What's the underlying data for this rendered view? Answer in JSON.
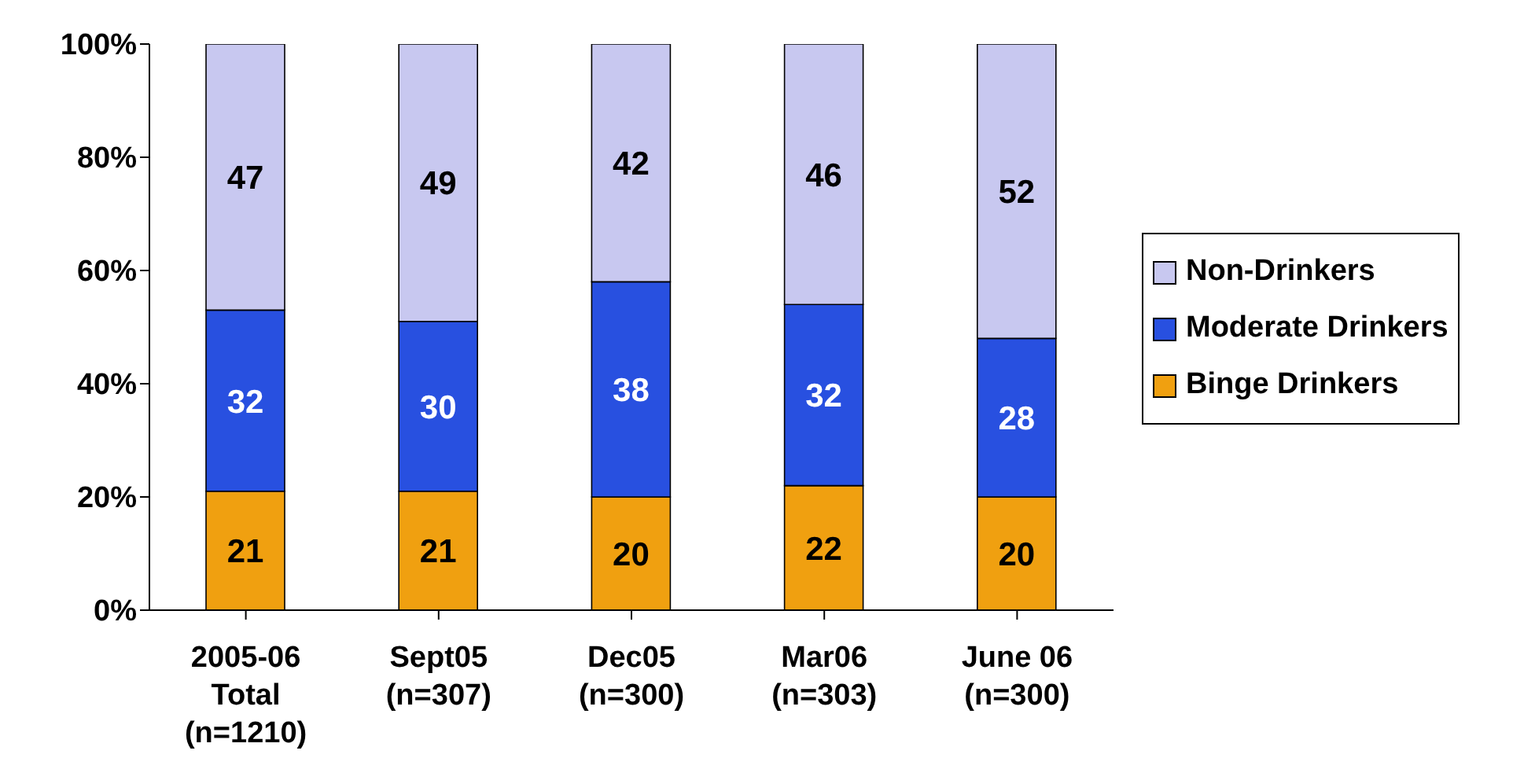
{
  "chart_data": {
    "type": "bar",
    "stacked": true,
    "categories": [
      "2005-06\nTotal\n(n=1210)",
      "Sept05\n(n=307)",
      "Dec05\n(n=300)",
      "Mar06\n(n=303)",
      "June 06\n(n=300)"
    ],
    "series": [
      {
        "name": "Binge Drinkers",
        "color": "#f0a010",
        "values": [
          21,
          21,
          20,
          22,
          20
        ]
      },
      {
        "name": "Moderate Drinkers",
        "color": "#2850e0",
        "values": [
          32,
          30,
          38,
          32,
          28
        ]
      },
      {
        "name": "Non-Drinkers",
        "color": "#c8c8f0",
        "values": [
          47,
          49,
          42,
          46,
          52
        ]
      }
    ],
    "ylim": [
      0,
      100
    ],
    "yticks": [
      {
        "value": 0,
        "label": "0%"
      },
      {
        "value": 20,
        "label": "20%"
      },
      {
        "value": 40,
        "label": "40%"
      },
      {
        "value": 60,
        "label": "60%"
      },
      {
        "value": 80,
        "label": "80%"
      },
      {
        "value": 100,
        "label": "100%"
      }
    ],
    "data_labels": true,
    "grid": false,
    "legend": "right"
  }
}
